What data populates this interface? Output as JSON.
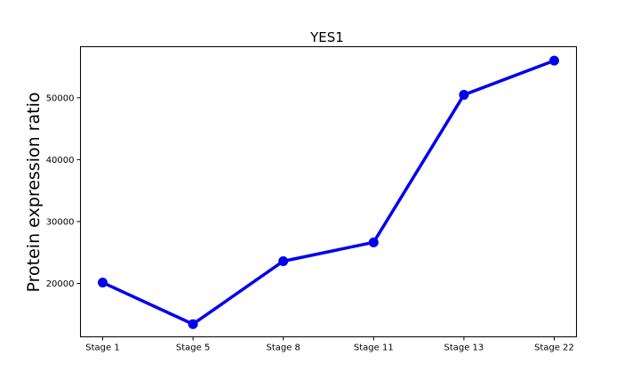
{
  "colors": {
    "line": "#0000ee",
    "axes": "#000000",
    "background": "#ffffff"
  },
  "chart_data": {
    "type": "line",
    "title": "YES1",
    "xlabel": "",
    "ylabel": "Protein expression ratio",
    "categories": [
      "Stage 1",
      "Stage 5",
      "Stage 8",
      "Stage 11",
      "Stage 13",
      "Stage 22"
    ],
    "series": [
      {
        "values": [
          20150,
          13430,
          23600,
          26640,
          50470,
          56000
        ]
      }
    ],
    "yticks": [
      20000,
      30000,
      40000,
      50000
    ],
    "ylim": [
      11380,
      58240
    ],
    "grid": false,
    "legend": "none"
  }
}
